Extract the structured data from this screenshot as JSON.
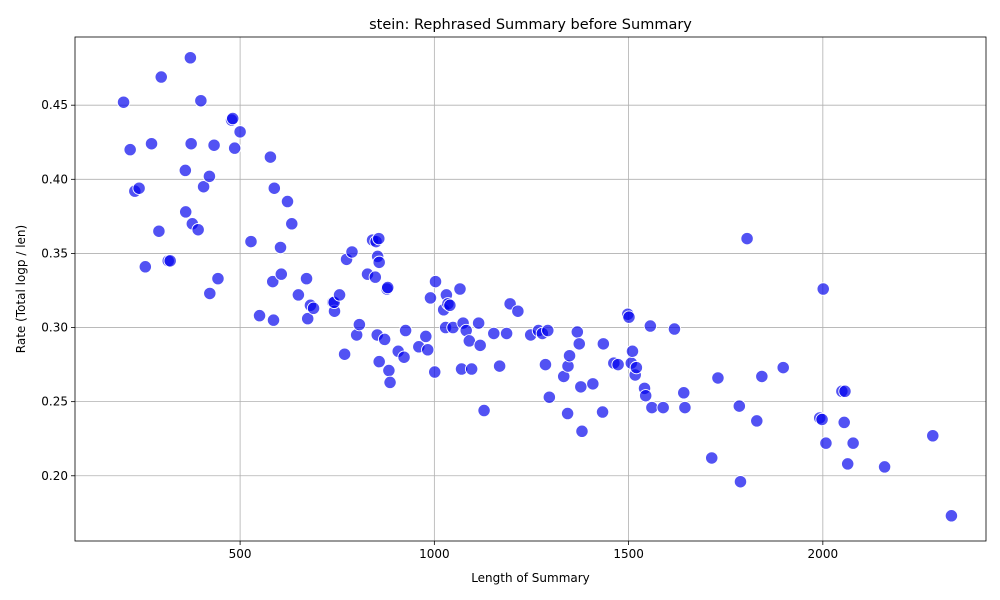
{
  "chart_data": {
    "type": "scatter",
    "title": "stein: Rephrased Summary before Summary",
    "xlabel": "Length of Summary",
    "ylabel": "Rate (Total logp / len)",
    "xlim": [
      75,
      2420
    ],
    "ylim": [
      0.156,
      0.496
    ],
    "xticks": [
      500,
      1000,
      1500,
      2000
    ],
    "yticks": [
      0.2,
      0.25,
      0.3,
      0.35,
      0.4,
      0.45
    ],
    "xtick_labels": [
      "500",
      "1000",
      "1500",
      "2000"
    ],
    "ytick_labels": [
      "0.20",
      "0.25",
      "0.30",
      "0.35",
      "0.40",
      "0.45"
    ],
    "grid": true,
    "marker_color": "#0000ee",
    "points": [
      [
        200,
        0.452
      ],
      [
        217,
        0.42
      ],
      [
        229,
        0.392
      ],
      [
        240,
        0.394
      ],
      [
        256,
        0.341
      ],
      [
        272,
        0.424
      ],
      [
        291,
        0.365
      ],
      [
        297,
        0.469
      ],
      [
        315,
        0.345
      ],
      [
        320,
        0.345
      ],
      [
        359,
        0.406
      ],
      [
        360,
        0.378
      ],
      [
        372,
        0.482
      ],
      [
        374,
        0.424
      ],
      [
        377,
        0.37
      ],
      [
        392,
        0.366
      ],
      [
        399,
        0.453
      ],
      [
        406,
        0.395
      ],
      [
        421,
        0.402
      ],
      [
        422,
        0.323
      ],
      [
        433,
        0.423
      ],
      [
        443,
        0.333
      ],
      [
        478,
        0.44
      ],
      [
        481,
        0.441
      ],
      [
        486,
        0.421
      ],
      [
        500,
        0.432
      ],
      [
        528,
        0.358
      ],
      [
        550,
        0.308
      ],
      [
        578,
        0.415
      ],
      [
        584,
        0.331
      ],
      [
        586,
        0.305
      ],
      [
        588,
        0.394
      ],
      [
        604,
        0.354
      ],
      [
        606,
        0.336
      ],
      [
        622,
        0.385
      ],
      [
        633,
        0.37
      ],
      [
        650,
        0.322
      ],
      [
        671,
        0.333
      ],
      [
        674,
        0.306
      ],
      [
        681,
        0.315
      ],
      [
        689,
        0.313
      ],
      [
        739,
        0.317
      ],
      [
        743,
        0.311
      ],
      [
        742,
        0.317
      ],
      [
        756,
        0.322
      ],
      [
        769,
        0.282
      ],
      [
        774,
        0.346
      ],
      [
        788,
        0.351
      ],
      [
        800,
        0.295
      ],
      [
        807,
        0.302
      ],
      [
        828,
        0.336
      ],
      [
        841,
        0.359
      ],
      [
        848,
        0.334
      ],
      [
        850,
        0.358
      ],
      [
        853,
        0.295
      ],
      [
        854,
        0.348
      ],
      [
        857,
        0.36
      ],
      [
        858,
        0.344
      ],
      [
        858,
        0.277
      ],
      [
        872,
        0.292
      ],
      [
        878,
        0.326
      ],
      [
        880,
        0.327
      ],
      [
        883,
        0.271
      ],
      [
        886,
        0.263
      ],
      [
        907,
        0.284
      ],
      [
        922,
        0.28
      ],
      [
        926,
        0.298
      ],
      [
        960,
        0.287
      ],
      [
        978,
        0.294
      ],
      [
        983,
        0.285
      ],
      [
        990,
        0.32
      ],
      [
        1001,
        0.27
      ],
      [
        1003,
        0.331
      ],
      [
        1024,
        0.312
      ],
      [
        1029,
        0.3
      ],
      [
        1031,
        0.322
      ],
      [
        1035,
        0.316
      ],
      [
        1040,
        0.315
      ],
      [
        1048,
        0.3
      ],
      [
        1066,
        0.326
      ],
      [
        1070,
        0.272
      ],
      [
        1074,
        0.303
      ],
      [
        1082,
        0.298
      ],
      [
        1090,
        0.291
      ],
      [
        1096,
        0.272
      ],
      [
        1114,
        0.303
      ],
      [
        1118,
        0.288
      ],
      [
        1128,
        0.244
      ],
      [
        1153,
        0.296
      ],
      [
        1168,
        0.274
      ],
      [
        1186,
        0.296
      ],
      [
        1195,
        0.316
      ],
      [
        1215,
        0.311
      ],
      [
        1248,
        0.295
      ],
      [
        1268,
        0.298
      ],
      [
        1278,
        0.296
      ],
      [
        1286,
        0.275
      ],
      [
        1292,
        0.298
      ],
      [
        1296,
        0.253
      ],
      [
        1333,
        0.267
      ],
      [
        1344,
        0.274
      ],
      [
        1343,
        0.242
      ],
      [
        1348,
        0.281
      ],
      [
        1368,
        0.297
      ],
      [
        1373,
        0.289
      ],
      [
        1377,
        0.26
      ],
      [
        1380,
        0.23
      ],
      [
        1408,
        0.262
      ],
      [
        1433,
        0.243
      ],
      [
        1435,
        0.289
      ],
      [
        1462,
        0.276
      ],
      [
        1473,
        0.275
      ],
      [
        1498,
        0.309
      ],
      [
        1501,
        0.307
      ],
      [
        1507,
        0.276
      ],
      [
        1510,
        0.284
      ],
      [
        1517,
        0.268
      ],
      [
        1520,
        0.273
      ],
      [
        1541,
        0.259
      ],
      [
        1544,
        0.254
      ],
      [
        1556,
        0.301
      ],
      [
        1560,
        0.246
      ],
      [
        1589,
        0.246
      ],
      [
        1618,
        0.299
      ],
      [
        1642,
        0.256
      ],
      [
        1645,
        0.246
      ],
      [
        1714,
        0.212
      ],
      [
        1730,
        0.266
      ],
      [
        1785,
        0.247
      ],
      [
        1788,
        0.196
      ],
      [
        1805,
        0.36
      ],
      [
        1830,
        0.237
      ],
      [
        1843,
        0.267
      ],
      [
        1898,
        0.273
      ],
      [
        1992,
        0.239
      ],
      [
        1998,
        0.238
      ],
      [
        2001,
        0.326
      ],
      [
        2008,
        0.222
      ],
      [
        2049,
        0.257
      ],
      [
        2055,
        0.236
      ],
      [
        2057,
        0.257
      ],
      [
        2064,
        0.208
      ],
      [
        2078,
        0.222
      ],
      [
        2159,
        0.206
      ],
      [
        2283,
        0.227
      ],
      [
        2331,
        0.173
      ]
    ]
  }
}
